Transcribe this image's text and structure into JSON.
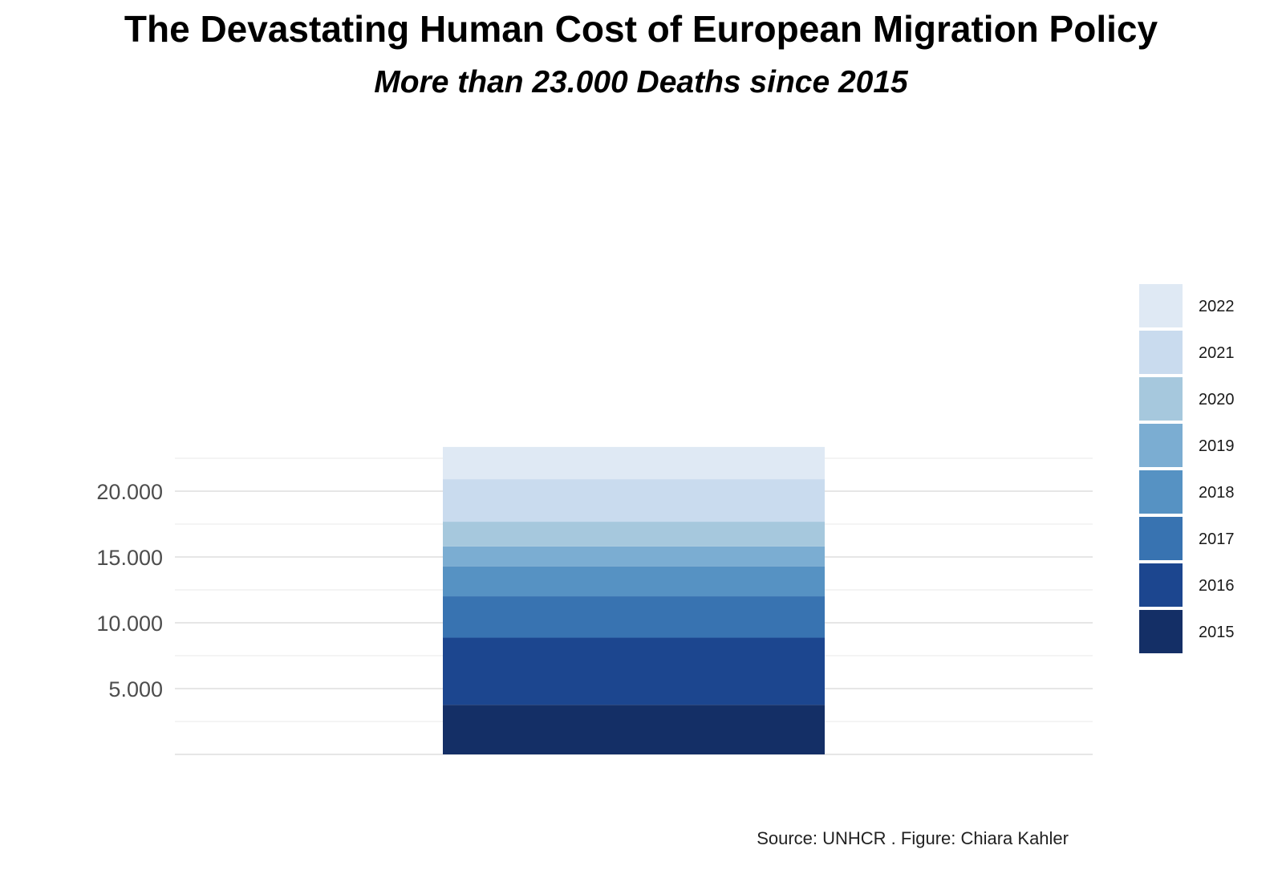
{
  "chart_data": {
    "type": "bar",
    "stacked": true,
    "title": "The Devastating Human Cost of European Migration Policy",
    "subtitle": "More than 23.000 Deaths since 2015",
    "caption": "Source: UNHCR . Figure: Chiara Kahler",
    "xlabel": "",
    "ylabel": "",
    "categories": [
      ""
    ],
    "series": [
      {
        "name": "2015",
        "values": [
          3770
        ],
        "color": "#142f66"
      },
      {
        "name": "2016",
        "values": [
          5100
        ],
        "color": "#1c468f"
      },
      {
        "name": "2017",
        "values": [
          3140
        ],
        "color": "#3873b1"
      },
      {
        "name": "2018",
        "values": [
          2280
        ],
        "color": "#5692c3"
      },
      {
        "name": "2019",
        "values": [
          1510
        ],
        "color": "#7badd2"
      },
      {
        "name": "2020",
        "values": [
          1880
        ],
        "color": "#a6c8dd"
      },
      {
        "name": "2021",
        "values": [
          3230
        ],
        "color": "#c9dbee"
      },
      {
        "name": "2022",
        "values": [
          2450
        ],
        "color": "#dfe9f4"
      }
    ],
    "ylim": [
      0,
      23400
    ],
    "yticks": [
      5000,
      10000,
      15000,
      20000
    ],
    "ytick_labels": [
      "5.000",
      "10.000",
      "15.000",
      "20.000"
    ],
    "grid": true,
    "legend_position": "right"
  }
}
